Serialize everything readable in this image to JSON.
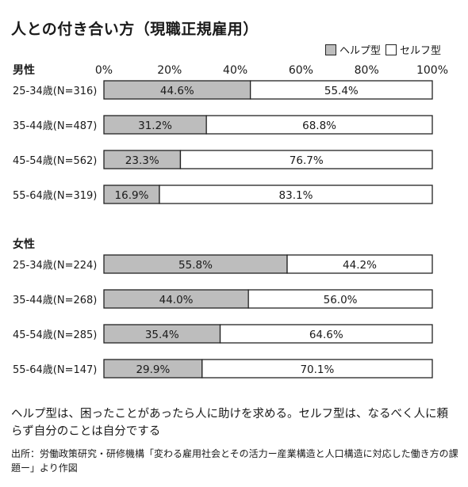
{
  "title": "人との付き合い方（現職正規雇用）",
  "legend": {
    "help": "ヘルプ型",
    "self": "セルフ型"
  },
  "colors": {
    "help": "#bdbdbd",
    "self": "#ffffff",
    "border": "#222222"
  },
  "chart_data": {
    "type": "bar",
    "orientation": "horizontal-stacked-100",
    "xlim": [
      0,
      100
    ],
    "ticks": [
      "0%",
      "20%",
      "40%",
      "60%",
      "80%",
      "100%"
    ],
    "groups": [
      {
        "name": "男性",
        "categories": [
          "25-34歳(N=316)",
          "35-44歳(N=487)",
          "45-54歳(N=562)",
          "55-64歳(N=319)"
        ],
        "series": [
          {
            "name": "ヘルプ型",
            "values": [
              44.6,
              31.2,
              23.3,
              16.9
            ],
            "labels": [
              "44.6%",
              "31.2%",
              "23.3%",
              "16.9%"
            ]
          },
          {
            "name": "セルフ型",
            "values": [
              55.4,
              68.8,
              76.7,
              83.1
            ],
            "labels": [
              "55.4%",
              "68.8%",
              "76.7%",
              "83.1%"
            ]
          }
        ]
      },
      {
        "name": "女性",
        "categories": [
          "25-34歳(N=224)",
          "35-44歳(N=268)",
          "45-54歳(N=285)",
          "55-64歳(N=147)"
        ],
        "series": [
          {
            "name": "ヘルプ型",
            "values": [
              55.8,
              44.0,
              35.4,
              29.9
            ],
            "labels": [
              "55.8%",
              "44.0%",
              "35.4%",
              "29.9%"
            ]
          },
          {
            "name": "セルフ型",
            "values": [
              44.2,
              56.0,
              64.6,
              70.1
            ],
            "labels": [
              "44.2%",
              "56.0%",
              "64.6%",
              "70.1%"
            ]
          }
        ]
      }
    ]
  },
  "note": "ヘルプ型は、困ったことがあったら人に助けを求める。セルフ型は、なるべく人に頼らず自分のことは自分でする",
  "source": "出所：労働政策研究・研修機構「変わる雇用社会とその活力ー産業構造と人口構造に対応した働き方の課題ー」より作図"
}
